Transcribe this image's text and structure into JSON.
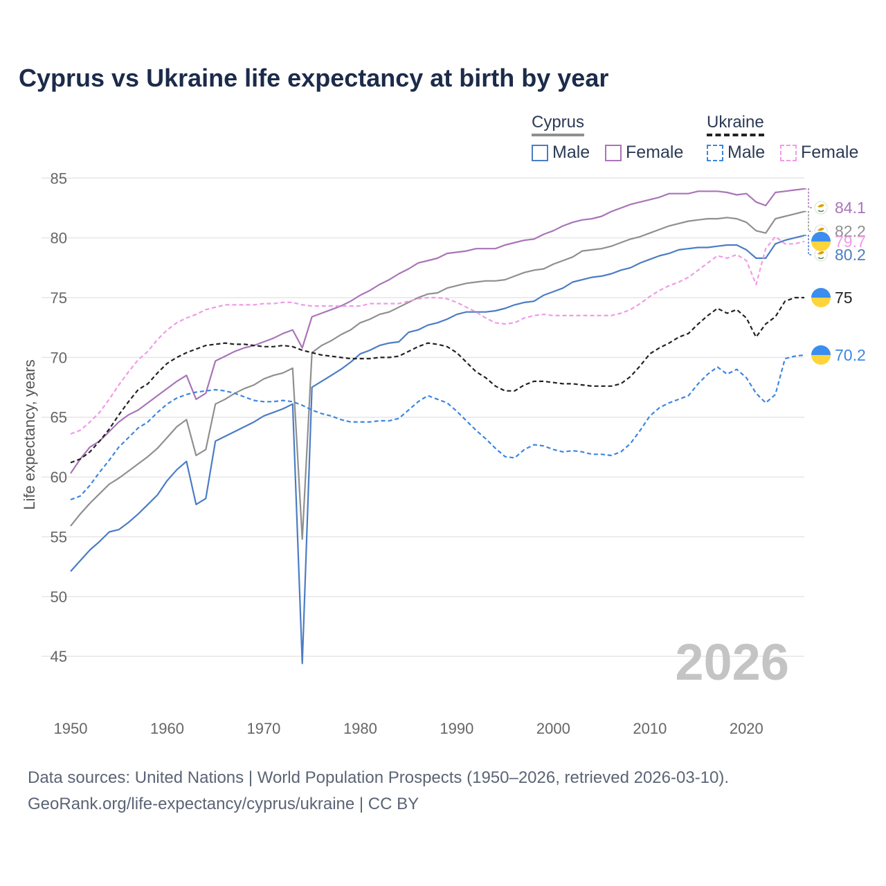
{
  "title": "Cyprus vs Ukraine life expectancy at birth by year",
  "legend": {
    "cyprus": {
      "label": "Cyprus",
      "male": "Male",
      "female": "Female"
    },
    "ukraine": {
      "label": "Ukraine",
      "male": "Male",
      "female": "Female"
    }
  },
  "year_label": "2026",
  "footer": {
    "line1": "Data sources: United Nations | World Population Prospects (1950–2026, retrieved 2026-03-10).",
    "line2": "GeoRank.org/life-expectancy/cyprus/ukraine | CC BY"
  },
  "chart_data": {
    "type": "line",
    "title": "Cyprus vs Ukraine life expectancy at birth by year",
    "xlabel": "",
    "ylabel": "Life expectancy, years",
    "xlim": [
      1950,
      2026
    ],
    "ylim": [
      42,
      86
    ],
    "x_ticks": [
      1950,
      1960,
      1970,
      1980,
      1990,
      2000,
      2010,
      2020
    ],
    "y_ticks": [
      45,
      50,
      55,
      60,
      65,
      70,
      75,
      80,
      85
    ],
    "grid": true,
    "x_start": 1950,
    "series": [
      {
        "name": "Cyprus Female",
        "country": "Cyprus",
        "color": "#a974b8",
        "dashed": false,
        "end_label": "84.1",
        "flag": "cyprus",
        "values": [
          60.3,
          61.5,
          62.5,
          63.0,
          63.8,
          64.6,
          65.2,
          65.6,
          66.2,
          66.8,
          67.4,
          68.0,
          68.5,
          66.5,
          67.0,
          69.7,
          70.1,
          70.5,
          70.8,
          71.0,
          71.3,
          71.6,
          72.0,
          72.3,
          70.8,
          73.4,
          73.7,
          74.0,
          74.3,
          74.7,
          75.2,
          75.6,
          76.1,
          76.5,
          77.0,
          77.4,
          77.9,
          78.1,
          78.3,
          78.7,
          78.8,
          78.9,
          79.1,
          79.1,
          79.1,
          79.4,
          79.6,
          79.8,
          79.9,
          80.3,
          80.6,
          81.0,
          81.3,
          81.5,
          81.6,
          81.8,
          82.2,
          82.5,
          82.8,
          83.0,
          83.2,
          83.4,
          83.7,
          83.7,
          83.7,
          83.9,
          83.9,
          83.9,
          83.8,
          83.6,
          83.7,
          83.0,
          82.7,
          83.8,
          83.9,
          84.0,
          84.1
        ]
      },
      {
        "name": "Cyprus Total",
        "country": "Cyprus",
        "color": "#8f8f8f",
        "dashed": false,
        "end_label": "82.2",
        "flag": "cyprus",
        "values": [
          55.9,
          56.9,
          57.8,
          58.6,
          59.4,
          59.9,
          60.5,
          61.1,
          61.7,
          62.4,
          63.3,
          64.2,
          64.8,
          61.8,
          62.3,
          66.1,
          66.5,
          67.0,
          67.4,
          67.7,
          68.2,
          68.5,
          68.7,
          69.1,
          54.8,
          70.4,
          71.0,
          71.4,
          71.9,
          72.3,
          72.9,
          73.2,
          73.6,
          73.8,
          74.2,
          74.6,
          75.0,
          75.3,
          75.4,
          75.8,
          76.0,
          76.2,
          76.3,
          76.4,
          76.4,
          76.5,
          76.8,
          77.1,
          77.3,
          77.4,
          77.8,
          78.1,
          78.4,
          78.9,
          79.0,
          79.1,
          79.3,
          79.6,
          79.9,
          80.1,
          80.4,
          80.7,
          81.0,
          81.2,
          81.4,
          81.5,
          81.6,
          81.6,
          81.7,
          81.6,
          81.3,
          80.6,
          80.4,
          81.6,
          81.8,
          82.0,
          82.2
        ]
      },
      {
        "name": "Cyprus Male",
        "country": "Cyprus",
        "color": "#4a7cc4",
        "dashed": false,
        "end_label": "80.2",
        "flag": "cyprus",
        "values": [
          52.1,
          53.0,
          53.9,
          54.6,
          55.4,
          55.6,
          56.2,
          56.9,
          57.7,
          58.5,
          59.7,
          60.6,
          61.3,
          57.7,
          58.2,
          63.0,
          63.4,
          63.8,
          64.2,
          64.6,
          65.1,
          65.4,
          65.7,
          66.1,
          44.4,
          67.5,
          68.0,
          68.5,
          69.0,
          69.6,
          70.3,
          70.6,
          71.0,
          71.2,
          71.3,
          72.1,
          72.3,
          72.7,
          72.9,
          73.2,
          73.6,
          73.8,
          73.8,
          73.8,
          73.9,
          74.1,
          74.4,
          74.6,
          74.7,
          75.2,
          75.5,
          75.8,
          76.3,
          76.5,
          76.7,
          76.8,
          77.0,
          77.3,
          77.5,
          77.9,
          78.2,
          78.5,
          78.7,
          79.0,
          79.1,
          79.2,
          79.2,
          79.3,
          79.4,
          79.4,
          79.0,
          78.3,
          78.3,
          79.5,
          79.8,
          80.0,
          80.2
        ]
      },
      {
        "name": "Ukraine Female",
        "country": "Ukraine",
        "color": "#f09ae8",
        "dashed": true,
        "end_label": "79.7",
        "flag": "ukraine",
        "values": [
          63.6,
          63.9,
          64.6,
          65.4,
          66.5,
          67.7,
          68.8,
          69.8,
          70.5,
          71.5,
          72.3,
          72.9,
          73.3,
          73.6,
          74.0,
          74.2,
          74.4,
          74.4,
          74.4,
          74.4,
          74.5,
          74.5,
          74.6,
          74.6,
          74.4,
          74.3,
          74.3,
          74.3,
          74.3,
          74.3,
          74.3,
          74.5,
          74.5,
          74.5,
          74.5,
          74.7,
          74.9,
          75.0,
          75.0,
          74.9,
          74.6,
          74.2,
          73.8,
          73.3,
          72.9,
          72.8,
          72.9,
          73.3,
          73.5,
          73.6,
          73.5,
          73.5,
          73.5,
          73.5,
          73.5,
          73.5,
          73.5,
          73.7,
          74.0,
          74.5,
          75.1,
          75.6,
          76.0,
          76.3,
          76.7,
          77.3,
          77.9,
          78.5,
          78.3,
          78.6,
          78.1,
          76.1,
          79.1,
          80.1,
          79.5,
          79.5,
          79.7
        ]
      },
      {
        "name": "Ukraine Total",
        "country": "Ukraine",
        "color": "#222222",
        "dashed": true,
        "end_label": "75",
        "flag": "ukraine",
        "values": [
          61.2,
          61.5,
          62.1,
          63.0,
          64.0,
          65.2,
          66.3,
          67.3,
          67.8,
          68.7,
          69.5,
          70.0,
          70.4,
          70.7,
          71.0,
          71.1,
          71.2,
          71.1,
          71.1,
          71.0,
          70.9,
          70.9,
          71.0,
          70.9,
          70.6,
          70.4,
          70.2,
          70.1,
          70.0,
          69.9,
          69.9,
          69.9,
          70.0,
          70.0,
          70.1,
          70.5,
          70.9,
          71.2,
          71.1,
          70.9,
          70.4,
          69.6,
          68.8,
          68.3,
          67.6,
          67.2,
          67.2,
          67.7,
          68.0,
          68.0,
          67.9,
          67.8,
          67.8,
          67.7,
          67.6,
          67.6,
          67.6,
          67.8,
          68.4,
          69.3,
          70.3,
          70.8,
          71.2,
          71.7,
          72.0,
          72.8,
          73.5,
          74.1,
          73.7,
          74.0,
          73.3,
          71.7,
          72.8,
          73.4,
          74.7,
          75.0,
          75.0
        ]
      },
      {
        "name": "Ukraine Male",
        "country": "Ukraine",
        "color": "#3b86e0",
        "dashed": true,
        "end_label": "70.2",
        "flag": "ukraine",
        "values": [
          58.1,
          58.4,
          59.3,
          60.4,
          61.4,
          62.5,
          63.3,
          64.1,
          64.6,
          65.4,
          66.1,
          66.6,
          66.9,
          67.1,
          67.2,
          67.3,
          67.2,
          67.0,
          66.7,
          66.4,
          66.3,
          66.3,
          66.4,
          66.3,
          66.0,
          65.6,
          65.3,
          65.1,
          64.8,
          64.6,
          64.6,
          64.6,
          64.7,
          64.7,
          64.9,
          65.6,
          66.3,
          66.8,
          66.5,
          66.2,
          65.5,
          64.7,
          63.9,
          63.2,
          62.4,
          61.7,
          61.6,
          62.3,
          62.7,
          62.6,
          62.3,
          62.1,
          62.2,
          62.1,
          61.9,
          61.9,
          61.8,
          62.1,
          62.8,
          63.9,
          65.1,
          65.8,
          66.2,
          66.5,
          66.8,
          67.8,
          68.6,
          69.2,
          68.6,
          69.0,
          68.3,
          67.0,
          66.2,
          66.9,
          69.9,
          70.1,
          70.2
        ]
      }
    ]
  }
}
